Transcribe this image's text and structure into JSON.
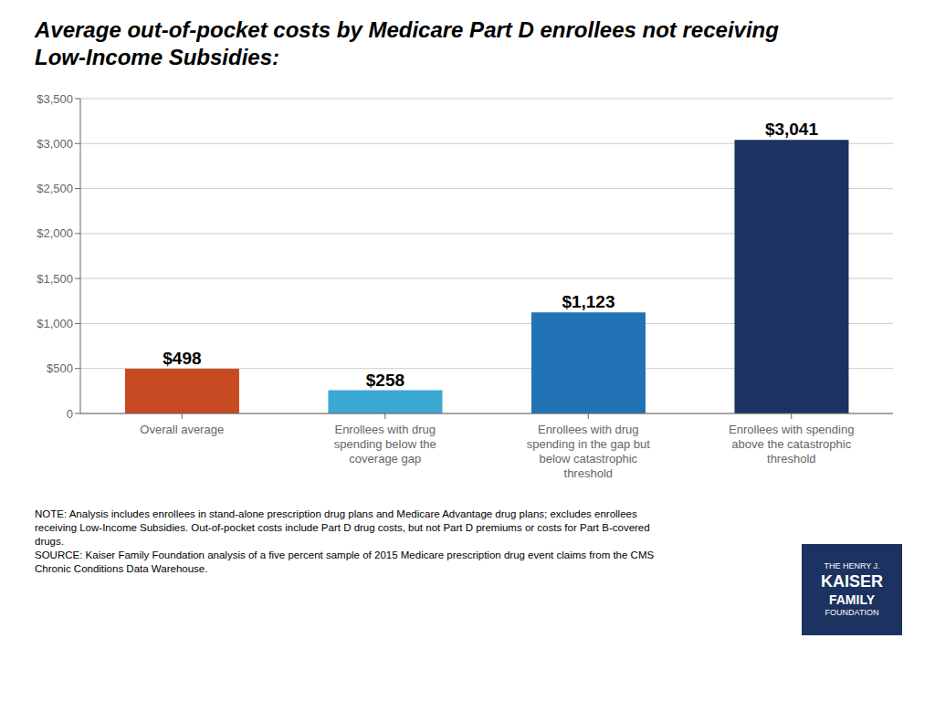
{
  "chart_data": {
    "type": "bar",
    "title": "Average out-of-pocket costs by Medicare Part D enrollees not receiving\nLow-Income Subsidies:",
    "categories": [
      "Overall average",
      "Enrollees with drug\nspending below the\ncoverage gap",
      "Enrollees with drug\nspending in the gap but\nbelow catastrophic\nthreshold",
      "Enrollees with spending\nabove the catastrophic\nthreshold"
    ],
    "values": [
      498,
      258,
      1123,
      3041
    ],
    "value_labels": [
      "$498",
      "$258",
      "$1,123",
      "$3,041"
    ],
    "data_labels": true,
    "colors": [
      "#C84A23",
      "#3AAAD4",
      "#2272B6",
      "#1C3260"
    ],
    "ylim": [
      0,
      3500
    ],
    "yticks": [
      0,
      {
        "value": 500,
        "label": "$500"
      },
      {
        "value": 1000,
        "label": "$1,000"
      },
      {
        "value": 1500,
        "label": "$1,500"
      },
      {
        "value": 2000,
        "label": "$2,000"
      },
      {
        "value": 2500,
        "label": "$2,500"
      },
      {
        "value": 3000,
        "label": "$3,000"
      },
      {
        "value": 3500,
        "label": "$3,500"
      }
    ],
    "grid": true,
    "annotations": [
      {
        "text": "NOTE: Analysis includes enrollees in stand-alone prescription drug plans and Medicare Advantage drug plans; excludes enrollees\nreceiving Low-Income Subsidies. Out-of-pocket costs include Part D drug costs, but not Part D premiums or costs for Part B-covered\ndrugs.\nSOURCE: Kaiser Family Foundation analysis of a five percent sample of 2015 Medicare prescription drug event claims from the CMS\nChronic Conditions Data Warehouse."
      },
      {
        "text": "THE HENRY J.\nKAISER\nFAMILY\nFOUNDATION",
        "color": "#1C3260"
      }
    ]
  }
}
